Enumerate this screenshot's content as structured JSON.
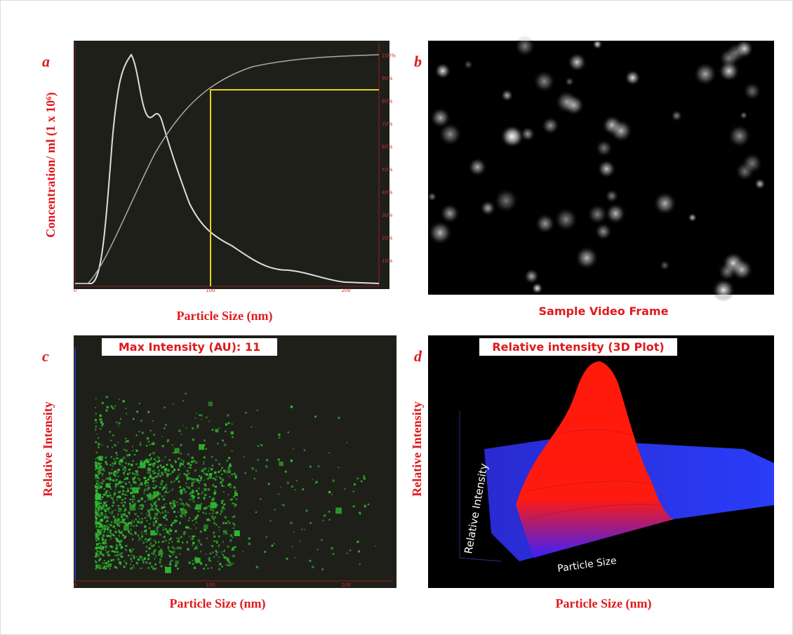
{
  "panel_a": {
    "letter": "a",
    "y_label": "Concentration/ ml (1 x 10⁶)",
    "x_label": "Particle Size (nm)",
    "x_ticks": [
      "0",
      "100",
      "200"
    ],
    "right_ticks": [
      "10%",
      "20%",
      "30%",
      "40%",
      "50%",
      "60%",
      "70%",
      "80%",
      "90%",
      "100%"
    ]
  },
  "panel_b": {
    "letter": "b",
    "caption": "Sample Video Frame"
  },
  "panel_c": {
    "letter": "c",
    "title": "Max Intensity (AU): 11",
    "y_label": "Relative Intensity",
    "x_label": "Particle Size (nm)",
    "x_ticks": [
      "0",
      "100",
      "200"
    ]
  },
  "panel_d": {
    "letter": "d",
    "title": "Relative intensity (3D Plot)",
    "y_label": "Relative Intensity",
    "x_label": "Particle Size (nm)",
    "inner_y_label": "Relative Intensity",
    "inner_x_label": "Particle Size"
  }
}
